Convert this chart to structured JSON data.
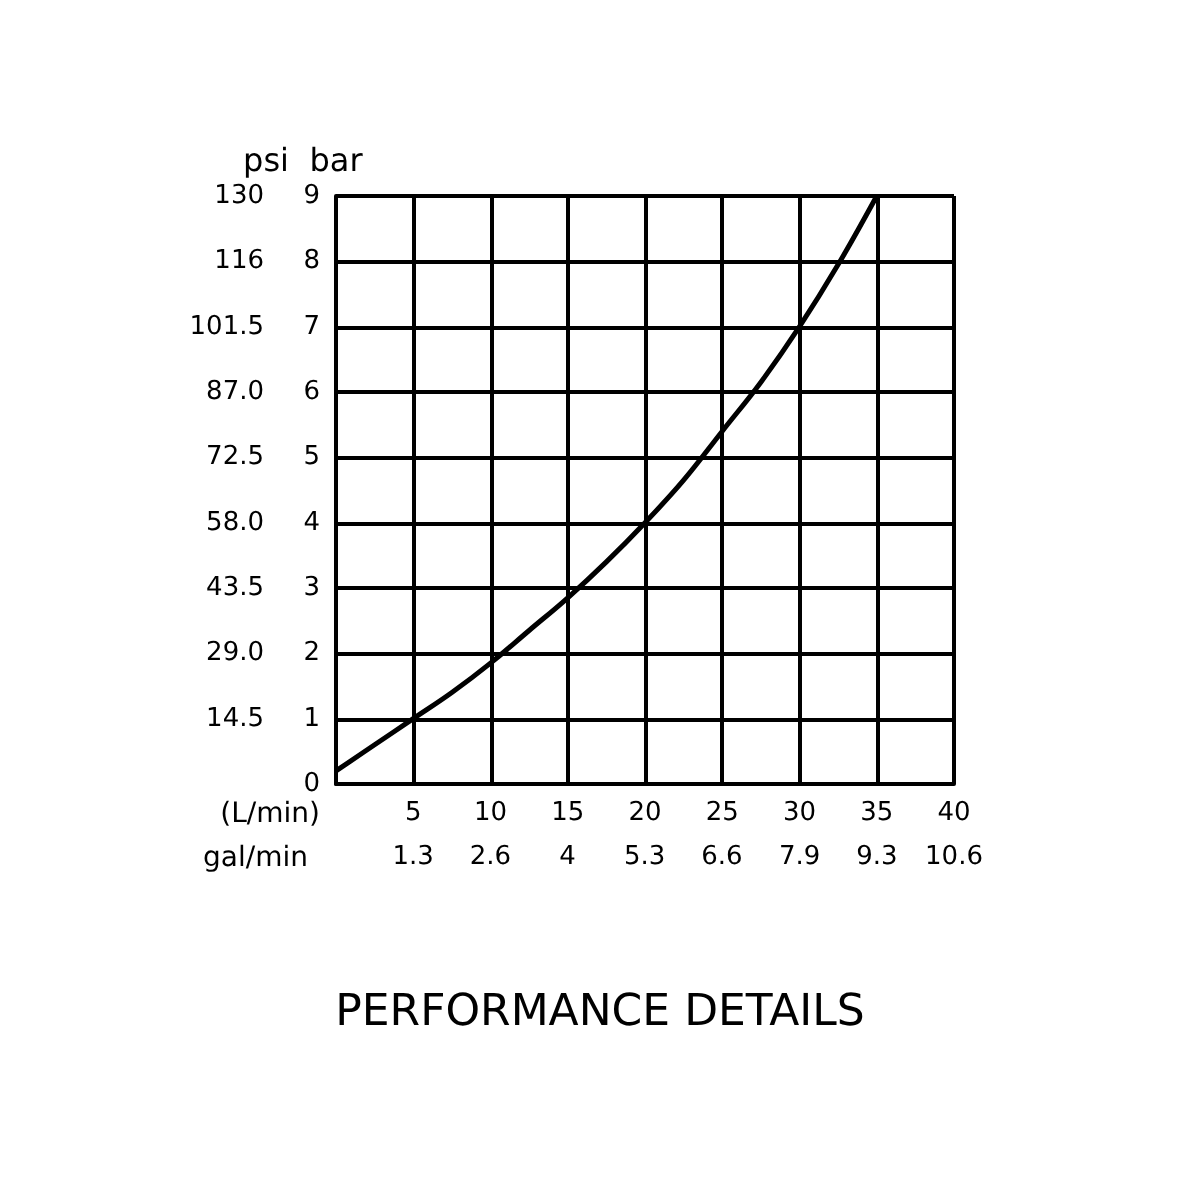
{
  "chart_data": {
    "type": "line",
    "title": "PERFORMANCE DETAILS",
    "xlabel": "(L/min)",
    "x2label": "gal/min",
    "ylabel": "bar",
    "y2label": "psi",
    "x": [
      0,
      2.5,
      5,
      7.5,
      10,
      12.5,
      15,
      17.5,
      20,
      22.5,
      25,
      27.5,
      30,
      32.5,
      35
    ],
    "series": [
      {
        "color": "#000000",
        "values": [
          0.2,
          0.6,
          1,
          1.4,
          1.85,
          2.35,
          2.85,
          3.4,
          4,
          4.65,
          5.4,
          6.15,
          7,
          7.95,
          9
        ]
      }
    ],
    "xlim": [
      0,
      40
    ],
    "xticks": [
      {
        "value": 0,
        "label": null
      },
      5,
      10,
      15,
      20,
      25,
      30,
      35,
      40
    ],
    "x2lim": [
      0,
      10.57
    ],
    "x2ticks": [
      {
        "value": 1.32,
        "label": "1.3"
      },
      {
        "value": 2.64,
        "label": "2.6"
      },
      {
        "value": 3.96,
        "label": "4"
      },
      {
        "value": 5.28,
        "label": "5.3"
      },
      {
        "value": 6.6,
        "label": "6.6"
      },
      {
        "value": 7.93,
        "label": "7.9"
      },
      {
        "value": 9.25,
        "label": "9.3"
      },
      {
        "value": 10.57,
        "label": "10.6"
      }
    ],
    "ylim": [
      0,
      9
    ],
    "yticks": [
      0,
      1,
      2,
      3,
      4,
      5,
      6,
      7,
      8,
      9
    ],
    "y2lim": [
      0,
      130.5
    ],
    "y2ticks": [
      {
        "value": 14.5,
        "label": "14.5"
      },
      {
        "value": 29,
        "label": "29.0"
      },
      {
        "value": 43.5,
        "label": "43.5"
      },
      {
        "value": 58,
        "label": "58.0"
      },
      {
        "value": 72.5,
        "label": "72.5"
      },
      {
        "value": 87,
        "label": "87.0"
      },
      {
        "value": 101.5,
        "label": "101.5"
      },
      {
        "value": 116,
        "label": "116"
      },
      {
        "value": 130.5,
        "label": "130"
      }
    ],
    "grid": true,
    "marker": "none",
    "line_style": "solid"
  }
}
